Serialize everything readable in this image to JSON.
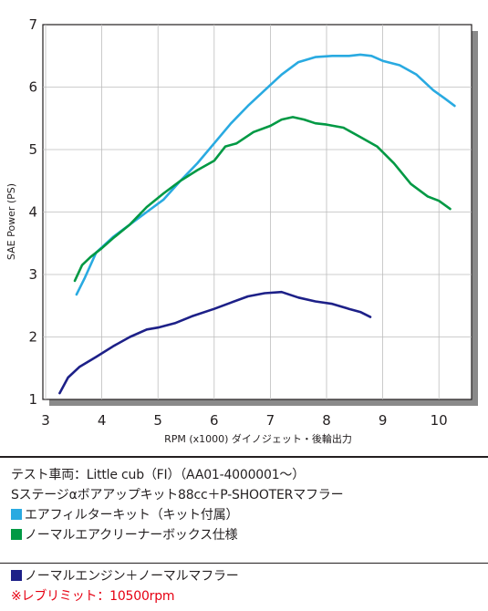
{
  "chart_data": {
    "type": "line",
    "xlabel": "RPM (x1000) ダイノジェット・後輪出力",
    "ylabel": "SAE Power (PS)",
    "xlim": [
      3,
      10.5
    ],
    "ylim": [
      1,
      7
    ],
    "xticks": [
      "3",
      "4",
      "5",
      "6",
      "7",
      "8",
      "9",
      "10"
    ],
    "yticks": [
      "1",
      "2",
      "3",
      "4",
      "5",
      "6",
      "7"
    ],
    "grid": true,
    "series": [
      {
        "name": "エアフィルターキット（キット付属）",
        "color": "#29aae1",
        "x": [
          3.55,
          3.7,
          3.9,
          4.2,
          4.5,
          4.8,
          5.1,
          5.4,
          5.7,
          6.0,
          6.3,
          6.6,
          6.9,
          7.2,
          7.5,
          7.8,
          8.1,
          8.4,
          8.6,
          8.8,
          9.0,
          9.3,
          9.6,
          9.9,
          10.1,
          10.28
        ],
        "y": [
          2.68,
          2.95,
          3.35,
          3.6,
          3.8,
          4.0,
          4.2,
          4.5,
          4.78,
          5.1,
          5.42,
          5.7,
          5.95,
          6.2,
          6.4,
          6.48,
          6.5,
          6.5,
          6.52,
          6.5,
          6.42,
          6.35,
          6.2,
          5.95,
          5.82,
          5.7
        ]
      },
      {
        "name": "ノーマルエアクリーナーボックス仕様",
        "color": "#009944",
        "x": [
          3.52,
          3.65,
          3.8,
          4.0,
          4.2,
          4.5,
          4.8,
          5.1,
          5.4,
          5.7,
          6.0,
          6.2,
          6.4,
          6.7,
          7.0,
          7.2,
          7.4,
          7.6,
          7.8,
          8.0,
          8.3,
          8.6,
          8.9,
          9.2,
          9.5,
          9.8,
          10.0,
          10.2
        ],
        "y": [
          2.9,
          3.15,
          3.28,
          3.42,
          3.58,
          3.8,
          4.08,
          4.3,
          4.5,
          4.67,
          4.82,
          5.05,
          5.1,
          5.28,
          5.38,
          5.48,
          5.52,
          5.48,
          5.42,
          5.4,
          5.35,
          5.2,
          5.05,
          4.78,
          4.45,
          4.25,
          4.18,
          4.05
        ]
      },
      {
        "name": "ノーマルエンジン＋ノーマルマフラー",
        "color": "#1d2088",
        "x": [
          3.25,
          3.4,
          3.6,
          3.9,
          4.2,
          4.5,
          4.8,
          5.0,
          5.3,
          5.6,
          6.0,
          6.3,
          6.6,
          6.9,
          7.2,
          7.5,
          7.8,
          8.1,
          8.4,
          8.6,
          8.78
        ],
        "y": [
          1.1,
          1.35,
          1.52,
          1.68,
          1.85,
          2.0,
          2.12,
          2.15,
          2.22,
          2.33,
          2.45,
          2.55,
          2.65,
          2.7,
          2.72,
          2.63,
          2.57,
          2.53,
          2.45,
          2.4,
          2.32
        ]
      }
    ]
  },
  "info": {
    "line1": "テスト車両：Little cub（FI）（AA01-4000001～）",
    "line2": "Sステージαボアアップキット88cc＋P-SHOOTERマフラー",
    "line3": "エアフィルターキット（キット付属）",
    "line4": "ノーマルエアクリーナーボックス仕様",
    "line5": "ノーマルエンジン＋ノーマルマフラー",
    "line6": "※レブリミット：10500rpm",
    "colors": {
      "cyan": "#29aae1",
      "green": "#009944",
      "navy": "#1d2088",
      "red": "#e60012"
    }
  }
}
